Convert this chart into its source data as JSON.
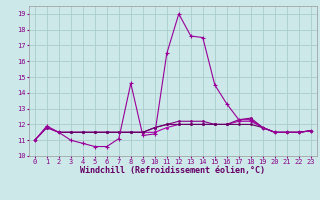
{
  "xlabel": "Windchill (Refroidissement éolien,°C)",
  "xlim": [
    -0.5,
    23.5
  ],
  "ylim": [
    10,
    19.5
  ],
  "yticks": [
    10,
    11,
    12,
    13,
    14,
    15,
    16,
    17,
    18,
    19
  ],
  "xticks": [
    0,
    1,
    2,
    3,
    4,
    5,
    6,
    7,
    8,
    9,
    10,
    11,
    12,
    13,
    14,
    15,
    16,
    17,
    18,
    19,
    20,
    21,
    22,
    23
  ],
  "background_color": "#cce8e8",
  "grid_color": "#aacccc",
  "line_color_main": "#880088",
  "series1_x": [
    0,
    1,
    2,
    3,
    4,
    5,
    6,
    7,
    8,
    9,
    10,
    11,
    12,
    13,
    14,
    15,
    16,
    17,
    18,
    19,
    20,
    21,
    22,
    23
  ],
  "series1_y": [
    11.0,
    11.9,
    11.5,
    11.0,
    10.8,
    10.6,
    10.6,
    11.1,
    14.6,
    11.3,
    11.4,
    16.5,
    19.0,
    17.6,
    17.5,
    14.5,
    13.3,
    12.3,
    12.3,
    11.8,
    11.5,
    11.5,
    11.5,
    11.6
  ],
  "series2_x": [
    0,
    1,
    2,
    3,
    4,
    5,
    6,
    7,
    8,
    9,
    10,
    11,
    12,
    13,
    14,
    15,
    16,
    17,
    18,
    19,
    20,
    21,
    22,
    23
  ],
  "series2_y": [
    11.0,
    11.8,
    11.5,
    11.5,
    11.5,
    11.5,
    11.5,
    11.5,
    11.5,
    11.5,
    11.5,
    11.8,
    12.0,
    12.0,
    12.0,
    12.0,
    12.0,
    12.2,
    12.2,
    11.8,
    11.5,
    11.5,
    11.5,
    11.6
  ],
  "series3_x": [
    0,
    1,
    2,
    3,
    4,
    5,
    6,
    7,
    8,
    9,
    10,
    11,
    12,
    13,
    14,
    15,
    16,
    17,
    18,
    19,
    20,
    21,
    22,
    23
  ],
  "series3_y": [
    11.0,
    11.8,
    11.5,
    11.5,
    11.5,
    11.5,
    11.5,
    11.5,
    11.5,
    11.5,
    11.8,
    12.0,
    12.2,
    12.2,
    12.2,
    12.0,
    12.0,
    12.3,
    12.4,
    11.8,
    11.5,
    11.5,
    11.5,
    11.6
  ],
  "series4_x": [
    2,
    3,
    4,
    5,
    6,
    7,
    8,
    9,
    10,
    11,
    12,
    13,
    14,
    15,
    16,
    17,
    18,
    19,
    20,
    21,
    22,
    23
  ],
  "series4_y": [
    11.5,
    11.5,
    11.5,
    11.5,
    11.5,
    11.5,
    11.5,
    11.5,
    11.8,
    12.0,
    12.0,
    12.0,
    12.0,
    12.0,
    12.0,
    12.0,
    12.0,
    11.8,
    11.5,
    11.5,
    11.5,
    11.6
  ],
  "colors": [
    "#990099",
    "#aa00aa",
    "#880088",
    "#660066"
  ],
  "tick_color": "#880088",
  "label_color": "#660066",
  "xlabel_fontsize": 6,
  "tick_fontsize": 5
}
